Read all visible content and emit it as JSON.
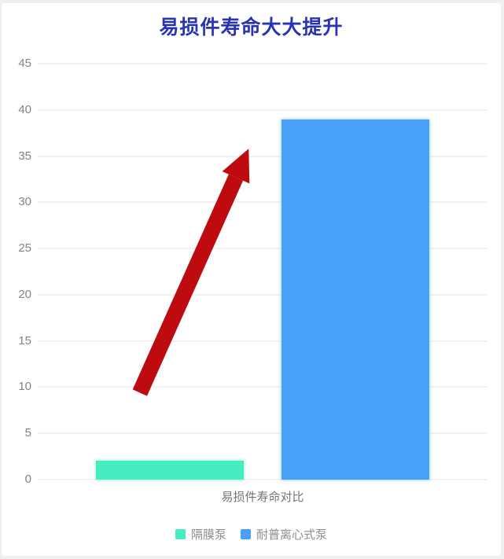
{
  "page": {
    "background": "#f0f0f0",
    "card_background": "#ffffff"
  },
  "chart_data": {
    "type": "bar",
    "title": "易损件寿命大大提升",
    "title_color": "#2934b4",
    "categories": [
      "易损件寿命对比"
    ],
    "series": [
      {
        "name": "隔膜泵",
        "values": [
          2
        ],
        "color": "#47EDC0"
      },
      {
        "name": "耐普离心式泵",
        "values": [
          39
        ],
        "color": "#48A1F7"
      }
    ],
    "ylim": [
      0,
      45
    ],
    "yticks": [
      0,
      5,
      10,
      15,
      20,
      25,
      30,
      35,
      40,
      45
    ],
    "grid": true,
    "legend_position": "bottom",
    "annotation": {
      "type": "arrow",
      "color": "#BE0B10",
      "x1_frac": 0.227,
      "y1_value": 9.4,
      "x2_frac": 0.469,
      "y2_value": 35.8
    }
  }
}
